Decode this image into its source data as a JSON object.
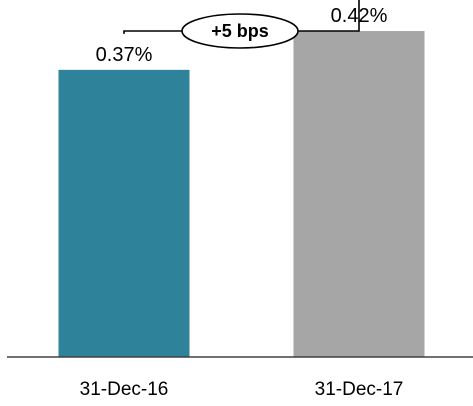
{
  "chart_data": {
    "type": "bar",
    "categories": [
      "31-Dec-16",
      "31-Dec-17"
    ],
    "values": [
      0.37,
      0.42
    ],
    "value_labels": [
      "0.37%",
      "0.42%"
    ],
    "colors": [
      "#2e8299",
      "#a6a6a6"
    ],
    "ylim": [
      0,
      0.46
    ],
    "grid": false,
    "annotation": {
      "text": "+5 bps",
      "from_category": "31-Dec-16",
      "to_category": "31-Dec-17"
    }
  }
}
